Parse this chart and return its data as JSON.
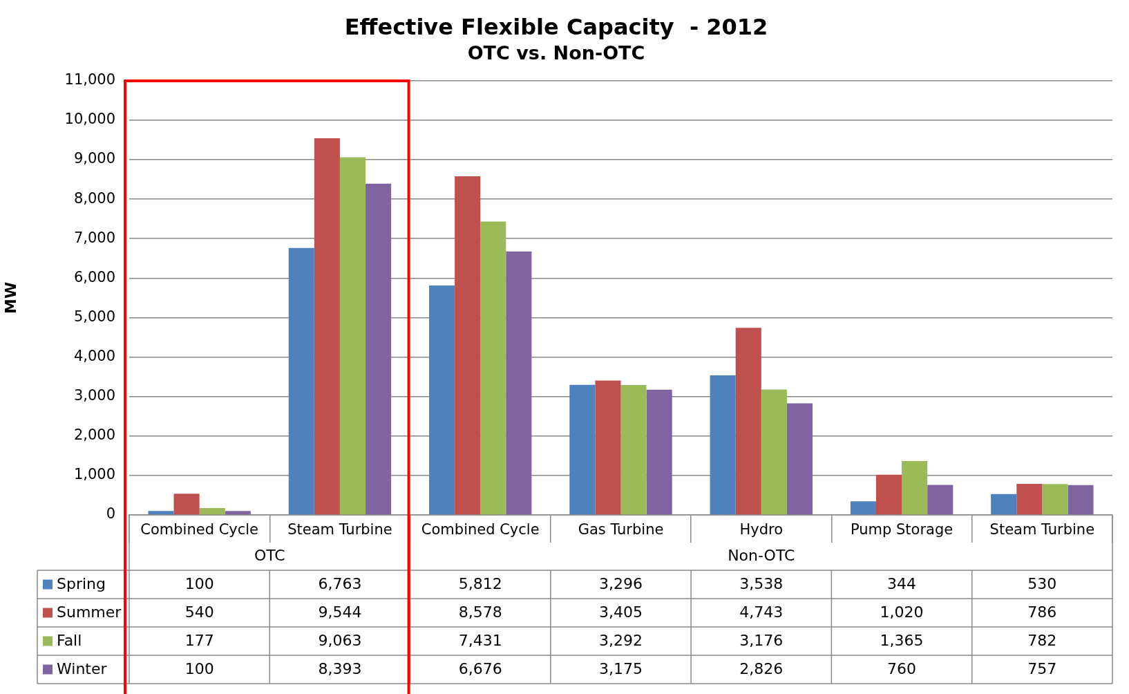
{
  "chart_data": {
    "type": "bar",
    "title": "Effective Flexible Capacity  - 2012",
    "subtitle": "OTC vs. Non-OTC",
    "ylabel": "MW",
    "categories": [
      "Combined Cycle",
      "Steam Turbine",
      "Combined Cycle",
      "Gas Turbine",
      "Hydro",
      "Pump Storage",
      "Steam Turbine"
    ],
    "series": [
      {
        "name": "Spring",
        "color": "#4f81bd",
        "values": [
          100,
          6763,
          5812,
          3296,
          3538,
          344,
          530
        ],
        "value_labels": [
          "100",
          "6,763",
          "5,812",
          "3,296",
          "3,538",
          "344",
          "530"
        ]
      },
      {
        "name": "Summer",
        "color": "#c0504d",
        "values": [
          540,
          9544,
          8578,
          3405,
          4743,
          1020,
          786
        ],
        "value_labels": [
          "540",
          "9,544",
          "8,578",
          "3,405",
          "4,743",
          "1,020",
          "786"
        ]
      },
      {
        "name": "Fall",
        "color": "#9bbb59",
        "values": [
          177,
          9063,
          7431,
          3292,
          3176,
          1365,
          782
        ],
        "value_labels": [
          "177",
          "9,063",
          "7,431",
          "3,292",
          "3,176",
          "1,365",
          "782"
        ]
      },
      {
        "name": "Winter",
        "color": "#8064a2",
        "values": [
          100,
          8393,
          6676,
          3175,
          2826,
          760,
          757
        ],
        "value_labels": [
          "100",
          "8,393",
          "6,676",
          "3,175",
          "2,826",
          "760",
          "757"
        ]
      }
    ],
    "ylim": [
      0,
      11000
    ],
    "yticks": [
      0,
      {
        "value": 1000,
        "label": "1,000"
      },
      {
        "value": 2000,
        "label": "2,000"
      },
      {
        "value": 3000,
        "label": "3,000"
      },
      {
        "value": 4000,
        "label": "4,000"
      },
      {
        "value": 5000,
        "label": "5,000"
      },
      {
        "value": 6000,
        "label": "6,000"
      },
      {
        "value": 7000,
        "label": "7,000"
      },
      {
        "value": 8000,
        "label": "8,000"
      },
      {
        "value": 9000,
        "label": "9,000"
      },
      {
        "value": 10000,
        "label": "10,000"
      },
      {
        "value": 11000,
        "label": "11,000"
      }
    ],
    "grid": "y",
    "legend": "bottom",
    "annotations": [
      "OTC",
      "Non-OTC"
    ]
  }
}
